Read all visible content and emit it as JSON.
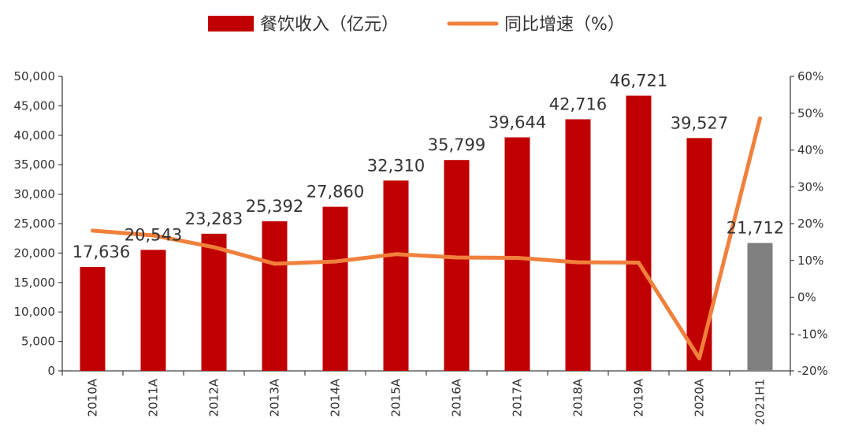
{
  "chart_data": {
    "type": "bar",
    "categories": [
      "2010A",
      "2011A",
      "2012A",
      "2013A",
      "2014A",
      "2015A",
      "2016A",
      "2017A",
      "2018A",
      "2019A",
      "2020A",
      "2021H1"
    ],
    "series": [
      {
        "name": "餐饮收入（亿元）",
        "type": "bar",
        "axis": "left",
        "values": [
          17636,
          20543,
          23283,
          25392,
          27860,
          32310,
          35799,
          39644,
          42716,
          46721,
          39527,
          21712
        ],
        "labels": [
          "17,636",
          "20,543",
          "23,283",
          "25,392",
          "27,860",
          "32,310",
          "35,799",
          "39,644",
          "42,716",
          "46,721",
          "39,527",
          "21,712"
        ],
        "color": "#c00000",
        "highlight_color": "#808080",
        "highlight_index": 11
      },
      {
        "name": "同比增速（%）",
        "type": "line",
        "axis": "right",
        "values": [
          18.1,
          16.8,
          13.6,
          9.1,
          9.7,
          11.7,
          10.8,
          10.7,
          9.5,
          9.4,
          -16.6,
          48.6
        ],
        "color": "#f0803c"
      }
    ],
    "y_left": {
      "range": [
        0,
        50000
      ],
      "step": 5000,
      "tick_labels": [
        "0",
        "5,000",
        "10,000",
        "15,000",
        "20,000",
        "25,000",
        "30,000",
        "35,000",
        "40,000",
        "45,000",
        "50,000"
      ]
    },
    "y_right": {
      "range": [
        -20,
        60
      ],
      "step": 10,
      "tick_labels": [
        "-20%",
        "-10%",
        "0%",
        "10%",
        "20%",
        "30%",
        "40%",
        "50%",
        "60%"
      ]
    },
    "legend_position": "top-center",
    "grid": false
  }
}
